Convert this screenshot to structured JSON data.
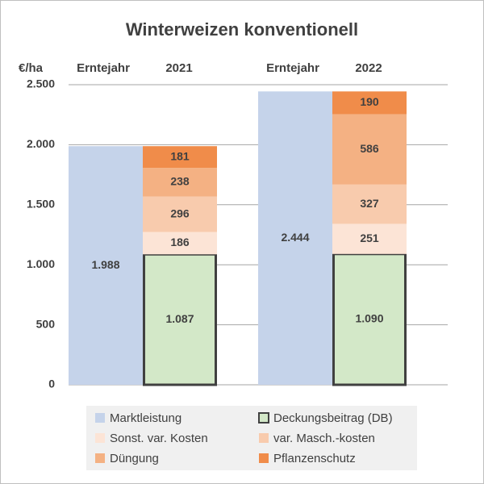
{
  "chart_data": {
    "type": "bar",
    "title": "Winterweizen konventionell",
    "ylabel": "€/ha",
    "category_label": "Erntejahr",
    "categories": [
      "2021",
      "2022"
    ],
    "ylim": [
      0,
      2500
    ],
    "yticks": [
      0,
      500,
      {
        "value": 1000,
        "label": "1.000"
      },
      {
        "value": 1500,
        "label": "1.500"
      },
      {
        "value": 2000,
        "label": "2.000"
      },
      {
        "value": 2500,
        "label": "2.500"
      }
    ],
    "grid": true,
    "legend": "bottom",
    "series": [
      {
        "name": "Marktleistung",
        "color": "#c5d3ea",
        "position": "side",
        "values": [
          1988,
          2444
        ],
        "value_labels": [
          "1.988",
          "2.444"
        ]
      },
      {
        "name": "Deckungsbeitrag (DB)",
        "color": "#d3e8c8",
        "border": "#404040",
        "position": "stack",
        "values": [
          1087,
          1090
        ],
        "value_labels": [
          "1.087",
          "1.090"
        ]
      },
      {
        "name": "Sonst. var. Kosten",
        "color": "#fce4d6",
        "position": "stack",
        "values": [
          186,
          251
        ]
      },
      {
        "name": "var. Masch.-kosten",
        "color": "#f8cbad",
        "position": "stack",
        "values": [
          296,
          327
        ]
      },
      {
        "name": "Düngung",
        "color": "#f4b183",
        "position": "stack",
        "values": [
          238,
          586
        ]
      },
      {
        "name": "Pflanzenschutz",
        "color": "#f08c4a",
        "position": "stack",
        "values": [
          181,
          190
        ]
      }
    ]
  }
}
